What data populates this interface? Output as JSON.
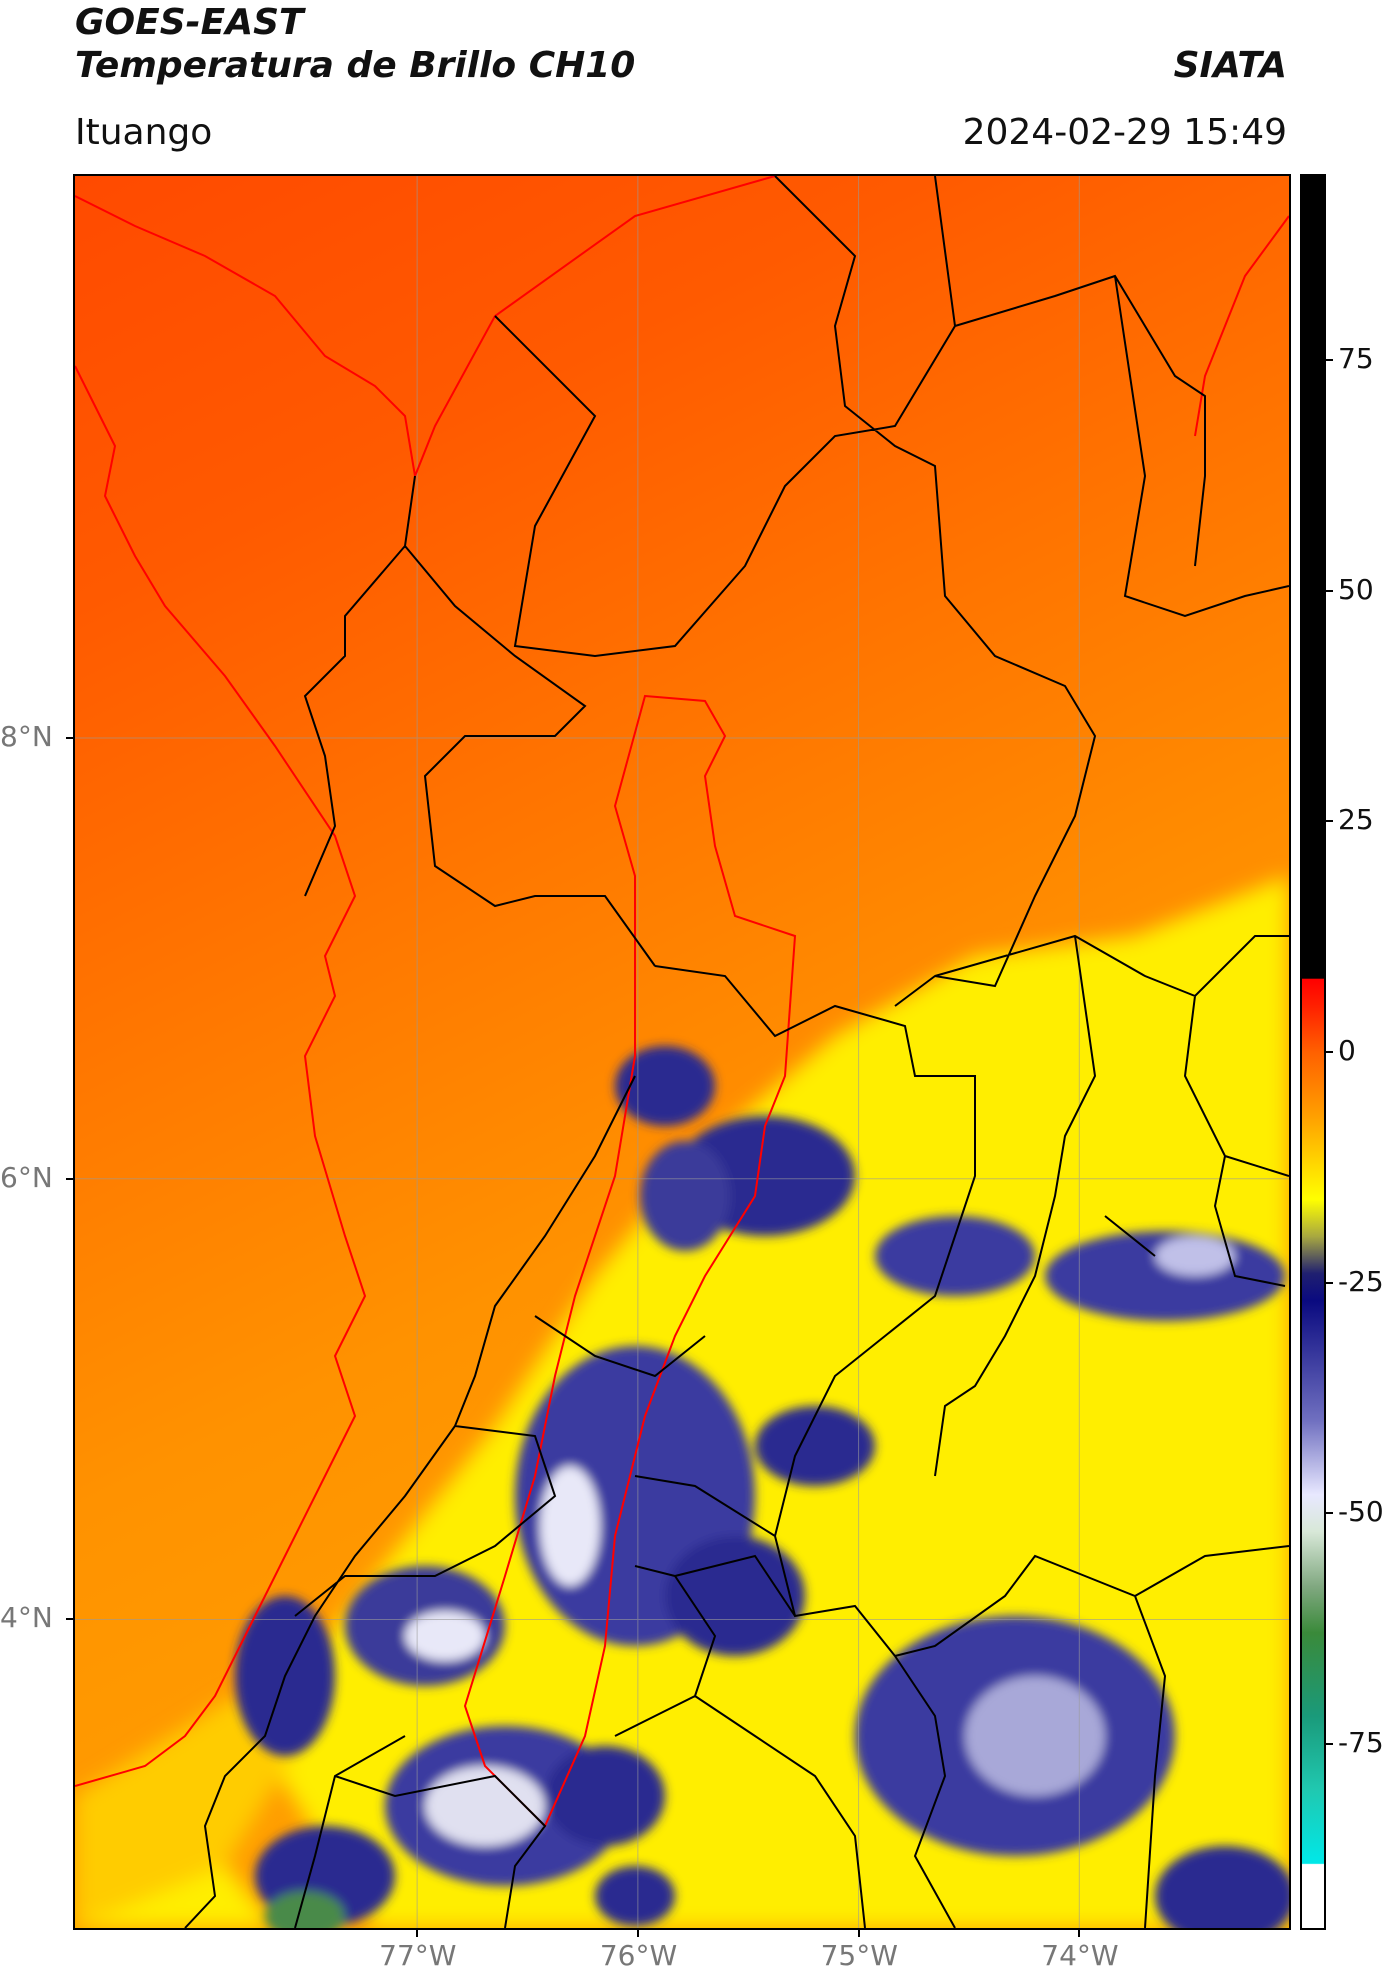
{
  "header": {
    "title_line1": "GOES-EAST",
    "title_line2": "Temperatura de Brillo CH10",
    "brand": "SIATA",
    "location": "Ituango",
    "timestamp": "2024-02-29 15:49"
  },
  "map": {
    "lon_range": [
      -78.55,
      -73.05
    ],
    "lat_range": [
      2.6,
      10.55
    ],
    "lat_ticks": [
      {
        "value": 8,
        "label": "8°N"
      },
      {
        "value": 6,
        "label": "6°N"
      },
      {
        "value": 4,
        "label": "4°N"
      }
    ],
    "lon_ticks": [
      {
        "value": -77,
        "label": "77°W"
      },
      {
        "value": -76,
        "label": "76°W"
      },
      {
        "value": -75,
        "label": "75°W"
      },
      {
        "value": -74,
        "label": "74°W"
      }
    ],
    "gridlines": true,
    "coastline_color": "#ff0000",
    "boundary_color": "#000000",
    "basin_outline_color": "#ff0000"
  },
  "colorbar": {
    "range": [
      -95,
      95
    ],
    "ticks": [
      75,
      50,
      25,
      0,
      -25,
      -50,
      -75
    ],
    "tick_labels": [
      "75",
      "50",
      "25",
      "0",
      "-25",
      "-50",
      "-75"
    ],
    "stops": [
      {
        "v": 95,
        "c": "#000000"
      },
      {
        "v": 8,
        "c": "#000000"
      },
      {
        "v": 7.9,
        "c": "#ff0000"
      },
      {
        "v": 5,
        "c": "#ff2000"
      },
      {
        "v": 0,
        "c": "#ff6000"
      },
      {
        "v": -7,
        "c": "#ffa000"
      },
      {
        "v": -13,
        "c": "#ffe000"
      },
      {
        "v": -16,
        "c": "#ffff00"
      },
      {
        "v": -20,
        "c": "#a8a840"
      },
      {
        "v": -24,
        "c": "#202070"
      },
      {
        "v": -27,
        "c": "#0a0a80"
      },
      {
        "v": -40,
        "c": "#7070c0"
      },
      {
        "v": -48,
        "c": "#e8e8ff"
      },
      {
        "v": -52,
        "c": "#d8e8d8"
      },
      {
        "v": -58,
        "c": "#80a880"
      },
      {
        "v": -63,
        "c": "#3a8a3a"
      },
      {
        "v": -72,
        "c": "#1a9a7a"
      },
      {
        "v": -80,
        "c": "#20c8b0"
      },
      {
        "v": -88,
        "c": "#00e8e8"
      },
      {
        "v": -88.1,
        "c": "#ffffff"
      },
      {
        "v": -95,
        "c": "#ffffff"
      }
    ]
  }
}
